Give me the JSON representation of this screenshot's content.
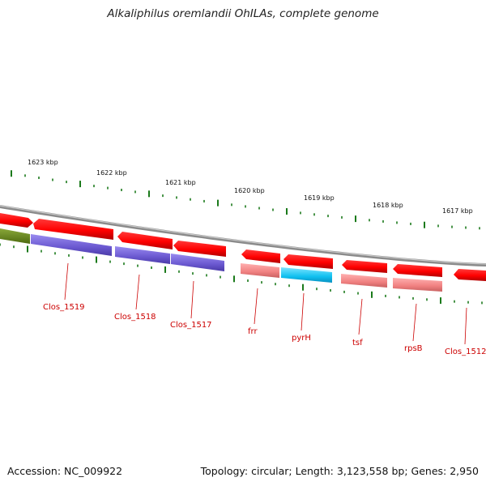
{
  "title": "Alkaliphilus oremlandii OhILAs, complete genome",
  "accession": "Accession: NC_009922",
  "topology": "Topology: circular; Length: 3,123,558 bp; Genes: 2,950",
  "scale_labels": [
    "1623 kbp",
    "1622 kbp",
    "1621 kbp",
    "1620 kbp",
    "1619 kbp",
    "1618 kbp",
    "1617 kbp"
  ],
  "gene_labels": [
    "Clos_1519",
    "Clos_1518",
    "Clos_1517",
    "frr",
    "pyrH",
    "tsf",
    "rpsB",
    "Clos_1512"
  ],
  "colors": {
    "backbone": "#8a8a8a",
    "arrow_red": "#ff1010",
    "cds_purple": "#7b68d8",
    "cds_olive": "#6e8f1e",
    "rna_pink": "#f08a8a",
    "rna_cyan": "#1ec8f0",
    "tick_green": "#1b7a1b",
    "label_red": "#cc0000"
  }
}
